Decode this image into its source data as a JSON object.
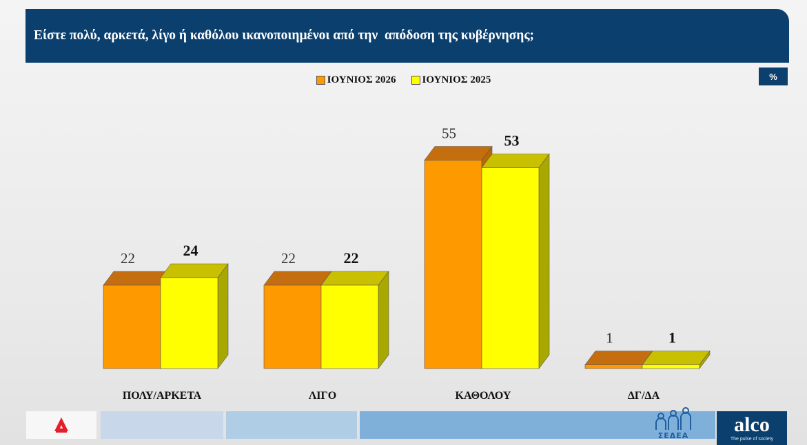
{
  "header": {
    "title": "Είστε πολύ, αρκετά, λίγο ή καθόλου ικανοποιημένοι από την  απόδοση της κυβέρνησης;"
  },
  "badge": {
    "label": "%"
  },
  "legend": [
    {
      "label": "ΙΟΥΝΙΟΣ 2026",
      "color": "#ff9900"
    },
    {
      "label": "ΙΟΥΝΙΟΣ 2025",
      "color": "#ffff00"
    }
  ],
  "chart_data": {
    "type": "bar",
    "title": "Είστε πολύ, αρκετά, λίγο ή καθόλου ικανοποιημένοι από την  απόδοση της κυβέρνησης;",
    "categories": [
      "ΠΟΛΥ/ΑΡΚΕΤΑ",
      "ΛΙΓΟ",
      "ΚΑΘΟΛΟΥ",
      "ΔΓ/ΔΑ"
    ],
    "series": [
      {
        "name": "ΙΟΥΝΙΟΣ 2026",
        "values": [
          22,
          22,
          55,
          1
        ],
        "color": "#ff9900"
      },
      {
        "name": "ΙΟΥΝΙΟΣ 2025",
        "values": [
          24,
          22,
          53,
          1
        ],
        "color": "#ffff00"
      }
    ],
    "unit": "%",
    "legend_position": "top-center",
    "grid": false,
    "ylim": [
      0,
      60
    ]
  },
  "footer": {
    "strip_colors": [
      "#c8d8ea",
      "#b0cde6",
      "#7fb0da"
    ],
    "logos": {
      "left": "alpha-news-logo",
      "sedea": "ΣΕΔΕΑ",
      "alco": "alco",
      "alco_tagline": "The pulse of society"
    }
  }
}
